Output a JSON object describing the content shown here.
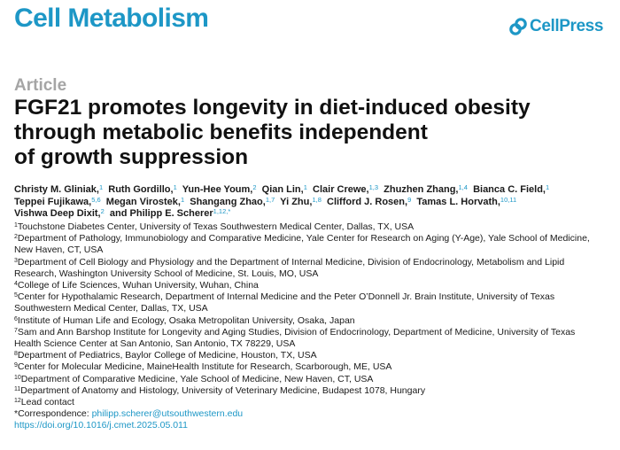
{
  "header": {
    "journal": "Cell Metabolism",
    "publisher": "CellPress",
    "brand_color": "#1d97c6"
  },
  "article_type": "Article",
  "title_lines": [
    "FGF21 promotes longevity in diet-induced obesity",
    "through metabolic benefits independent",
    "of growth suppression"
  ],
  "authors": [
    {
      "name": "Christy M. Gliniak,",
      "aff": "1"
    },
    {
      "name": "Ruth Gordillo,",
      "aff": "1"
    },
    {
      "name": "Yun-Hee Youm,",
      "aff": "2"
    },
    {
      "name": "Qian Lin,",
      "aff": "1"
    },
    {
      "name": "Clair Crewe,",
      "aff": "1,3"
    },
    {
      "name": "Zhuzhen Zhang,",
      "aff": "1,4"
    },
    {
      "name": "Bianca C. Field,",
      "aff": "1"
    },
    {
      "name": "Teppei Fujikawa,",
      "aff": "5,6"
    },
    {
      "name": "Megan Virostek,",
      "aff": "1"
    },
    {
      "name": "Shangang Zhao,",
      "aff": "1,7"
    },
    {
      "name": "Yi Zhu,",
      "aff": "1,8"
    },
    {
      "name": "Clifford J. Rosen,",
      "aff": "9"
    },
    {
      "name": "Tamas L. Horvath,",
      "aff": "10,11"
    },
    {
      "name": "Vishwa Deep Dixit,",
      "aff": "2"
    },
    {
      "name": "and Philipp E. Scherer",
      "aff": "1,12,*"
    }
  ],
  "affiliations": [
    {
      "num": "1",
      "text": "Touchstone Diabetes Center, University of Texas Southwestern Medical Center, Dallas, TX, USA"
    },
    {
      "num": "2",
      "text": "Department of Pathology, Immunobiology and Comparative Medicine, Yale Center for Research on Aging (Y-Age), Yale School of Medicine,"
    },
    {
      "num": "",
      "text": "New Haven, CT, USA"
    },
    {
      "num": "3",
      "text": "Department of Cell Biology and Physiology and the Department of Internal Medicine, Division of Endocrinology, Metabolism and Lipid"
    },
    {
      "num": "",
      "text": "Research, Washington University School of Medicine, St. Louis, MO, USA"
    },
    {
      "num": "4",
      "text": "College of Life Sciences, Wuhan University, Wuhan, China"
    },
    {
      "num": "5",
      "text": "Center for Hypothalamic Research, Department of Internal Medicine and the Peter O’Donnell Jr. Brain Institute, University of Texas"
    },
    {
      "num": "",
      "text": "Southwestern Medical Center, Dallas, TX, USA"
    },
    {
      "num": "6",
      "text": "Institute of Human Life and Ecology, Osaka Metropolitan University, Osaka, Japan"
    },
    {
      "num": "7",
      "text": "Sam and Ann Barshop Institute for Longevity and Aging Studies, Division of Endocrinology, Department of Medicine, University of Texas"
    },
    {
      "num": "",
      "text": "Health Science Center at San Antonio, San Antonio, TX 78229, USA"
    },
    {
      "num": "8",
      "text": "Department of Pediatrics, Baylor College of Medicine, Houston, TX, USA"
    },
    {
      "num": "9",
      "text": "Center for Molecular Medicine, MaineHealth Institute for Research, Scarborough, ME, USA"
    },
    {
      "num": "10",
      "text": "Department of Comparative Medicine, Yale School of Medicine, New Haven, CT, USA"
    },
    {
      "num": "11",
      "text": "Department of Anatomy and Histology, University of Veterinary Medicine, Budapest 1078, Hungary"
    },
    {
      "num": "12",
      "text": "Lead contact"
    }
  ],
  "correspondence": {
    "label": "*Correspondence: ",
    "email": "philipp.scherer@utsouthwestern.edu"
  },
  "doi": "https://doi.org/10.1016/j.cmet.2025.05.011"
}
